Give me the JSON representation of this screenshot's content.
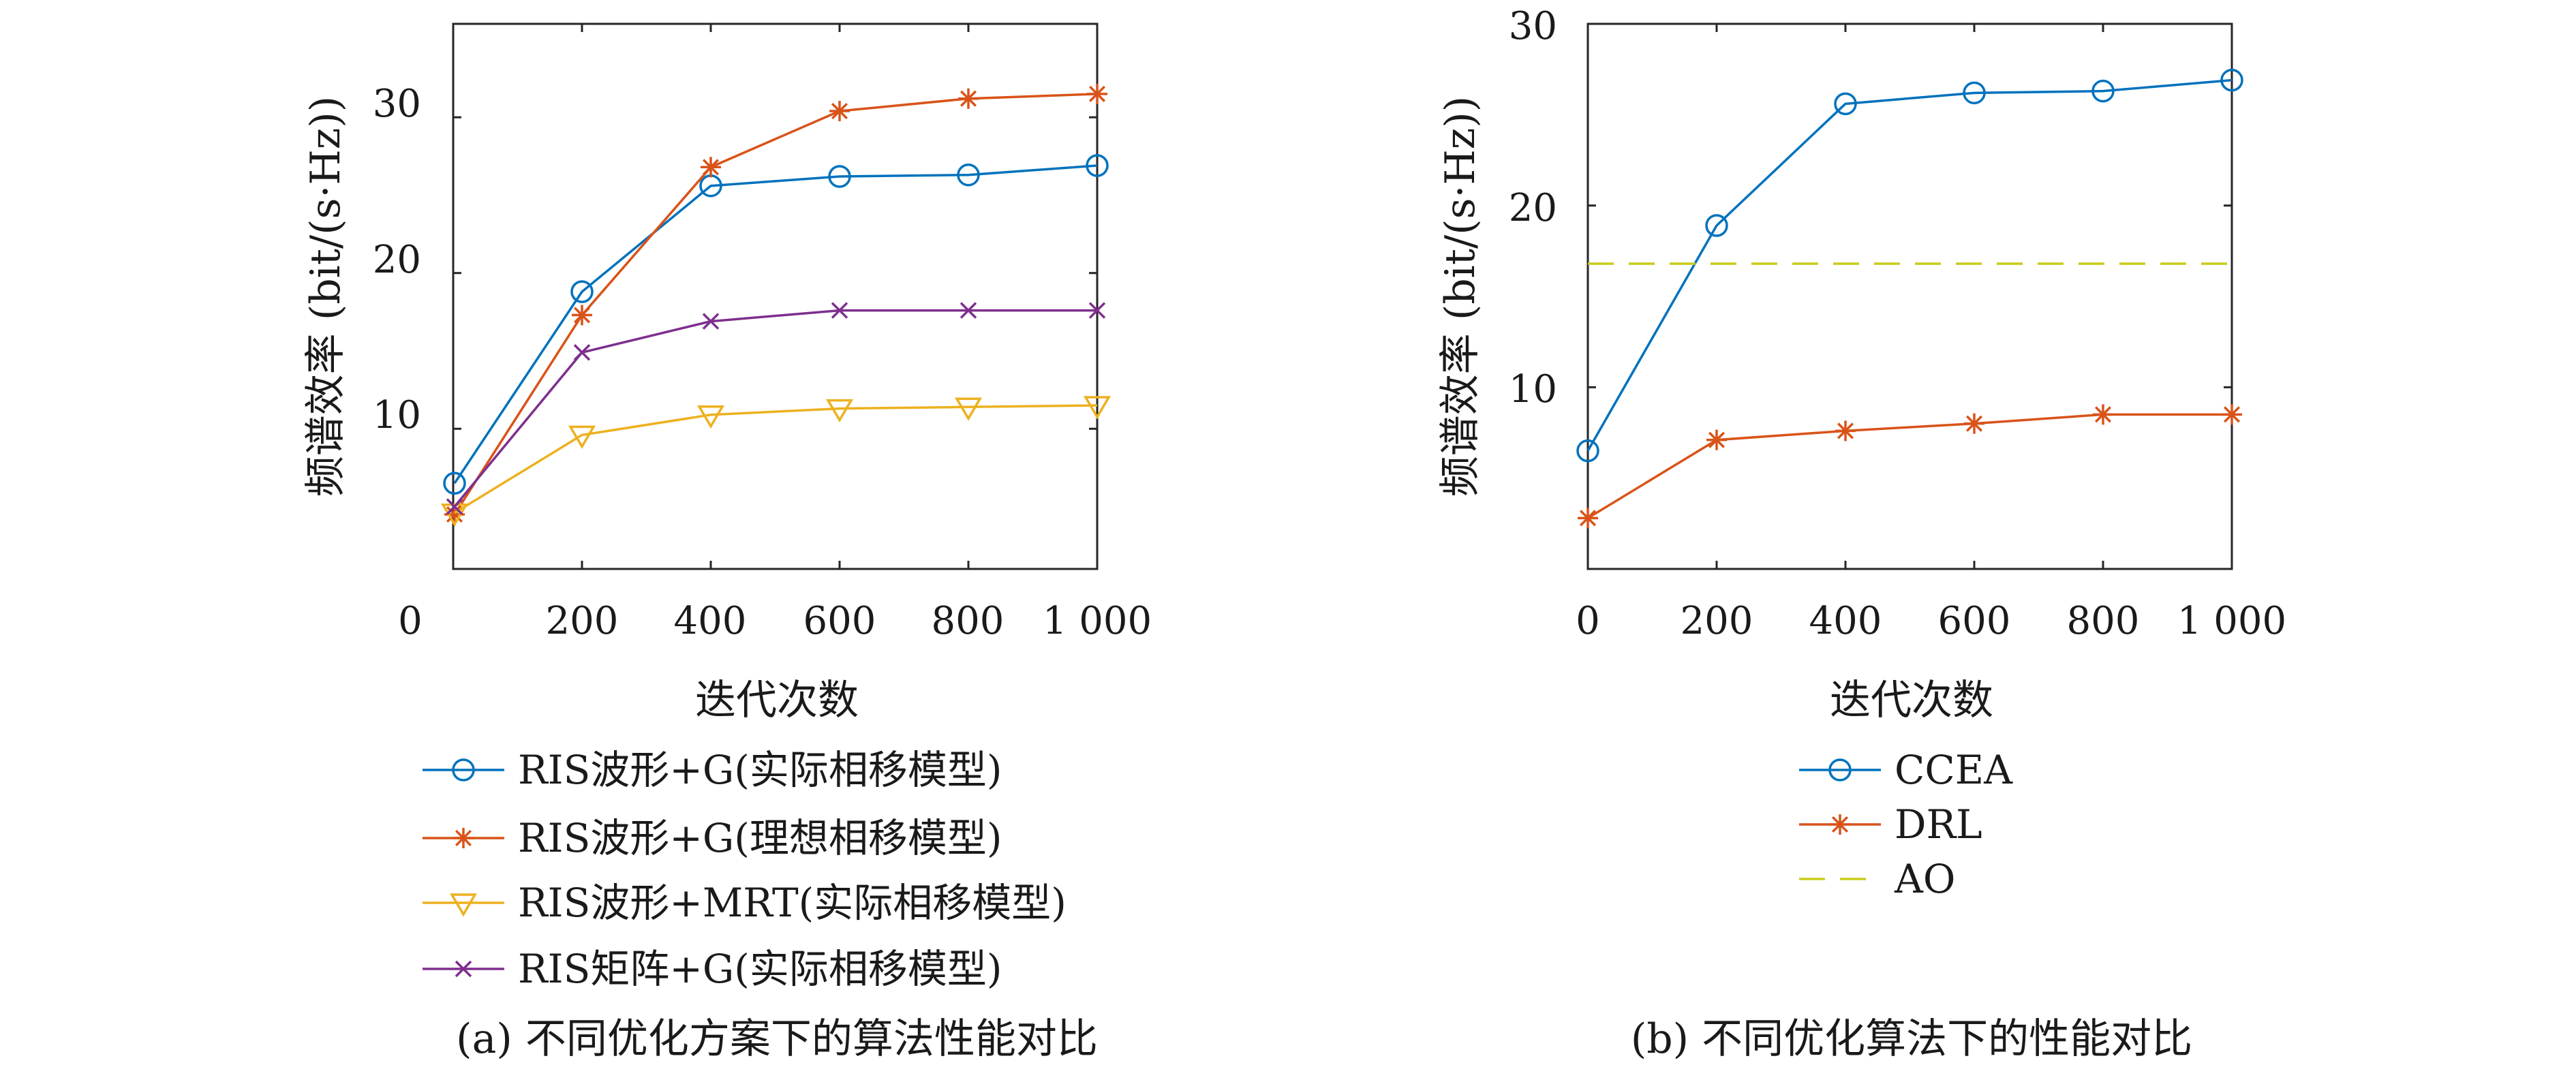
{
  "chart_data": [
    {
      "type": "line",
      "caption": "(a) 不同优化方案下的算法性能对比",
      "xlabel": "迭代次数",
      "ylabel": "频谱效率 (bit/(s·Hz))",
      "xlim": [
        0,
        1000
      ],
      "ylim": [
        1,
        36
      ],
      "xticks": [
        0,
        200,
        400,
        600,
        800,
        1000
      ],
      "xtick_labels": [
        "0",
        "200",
        "400",
        "600",
        "800",
        "1 000"
      ],
      "yticks": [
        10,
        20,
        30
      ],
      "ytick_labels": [
        "10",
        "20",
        "30"
      ],
      "grid": false,
      "legend_position": "below",
      "x": [
        0,
        200,
        400,
        600,
        800,
        1000
      ],
      "series": [
        {
          "name": "RIS波形+G(实际相移模型)",
          "color": "#0072BD",
          "marker": "circle",
          "values": [
            6.5,
            18.8,
            25.6,
            26.2,
            26.3,
            26.9
          ]
        },
        {
          "name": "RIS波形+G(理想相移模型)",
          "color": "#D95319",
          "marker": "asterisk",
          "values": [
            4.5,
            17.3,
            26.8,
            30.4,
            31.2,
            31.5
          ]
        },
        {
          "name": "RIS波形+MRT(实际相移模型)",
          "color": "#EDB120",
          "marker": "triangle-down",
          "values": [
            4.6,
            9.6,
            10.9,
            11.3,
            11.4,
            11.5
          ]
        },
        {
          "name": "RIS矩阵+G(实际相移模型)",
          "color": "#7E2F8E",
          "marker": "x",
          "values": [
            5.0,
            14.9,
            16.9,
            17.6,
            17.6,
            17.6
          ]
        }
      ]
    },
    {
      "type": "line",
      "caption": "(b) 不同优化算法下的性能对比",
      "xlabel": "迭代次数",
      "ylabel": "频谱效率 (bit/(s·Hz))",
      "xlim": [
        0,
        1000
      ],
      "ylim": [
        0,
        30
      ],
      "xticks": [
        0,
        200,
        400,
        600,
        800,
        1000
      ],
      "xtick_labels": [
        "0",
        "200",
        "400",
        "600",
        "800",
        "1 000"
      ],
      "yticks": [
        10,
        20,
        30
      ],
      "ytick_labels": [
        "10",
        "20",
        "30"
      ],
      "grid": false,
      "legend_position": "below",
      "x": [
        0,
        200,
        400,
        600,
        800,
        1000
      ],
      "series": [
        {
          "name": "CCEA",
          "color": "#0072BD",
          "marker": "circle",
          "values": [
            6.5,
            18.9,
            25.6,
            26.2,
            26.3,
            26.9
          ]
        },
        {
          "name": "DRL",
          "color": "#D95319",
          "marker": "asterisk",
          "values": [
            2.8,
            7.1,
            7.6,
            8.0,
            8.5,
            8.5
          ]
        },
        {
          "name": "AO",
          "color": "#C8CC1A",
          "marker": "none",
          "dashed": true,
          "values": [
            16.8,
            16.8,
            16.8,
            16.8,
            16.8,
            16.8
          ]
        }
      ]
    }
  ]
}
